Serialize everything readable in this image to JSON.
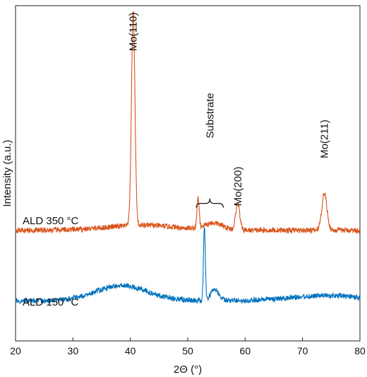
{
  "chart_data": {
    "type": "line",
    "xlabel": "2Θ (°)",
    "ylabel": "Intensity (a.u.)",
    "xlim": [
      20,
      80
    ],
    "ylim": [
      0,
      1
    ],
    "xticks": [
      20,
      30,
      40,
      50,
      60,
      70,
      80
    ],
    "grid": false,
    "series": [
      {
        "name": "ALD 350 °C",
        "color": "#d95319",
        "baseline": 0.33,
        "noise": 0.008,
        "peaks": [
          {
            "center": 40.5,
            "height": 0.64,
            "width": 0.3
          },
          {
            "center": 51.8,
            "height": 0.09,
            "width": 0.18
          },
          {
            "center": 54.5,
            "height": 0.02,
            "width": 1.6
          },
          {
            "center": 58.7,
            "height": 0.08,
            "width": 0.35
          },
          {
            "center": 73.8,
            "height": 0.11,
            "width": 0.45
          }
        ],
        "humps": [
          {
            "center": 42,
            "height": 0.015,
            "width": 6
          }
        ]
      },
      {
        "name": "ALD 150 °C",
        "color": "#0072bd",
        "baseline": 0.12,
        "noise": 0.008,
        "peaks": [
          {
            "center": 52.9,
            "height": 0.22,
            "width": 0.16
          },
          {
            "center": 54.7,
            "height": 0.035,
            "width": 0.7
          }
        ],
        "humps": [
          {
            "center": 38.5,
            "height": 0.045,
            "width": 4.5
          },
          {
            "center": 74,
            "height": 0.015,
            "width": 6
          }
        ]
      }
    ],
    "annotations": [
      {
        "text": "Mo(110)",
        "x": 40.5,
        "y": 0.98
      },
      {
        "text": "Substrate",
        "x": 53.9,
        "y": 0.74
      },
      {
        "text": "Mo(200)",
        "x": 58.7,
        "y": 0.52
      },
      {
        "text": "Mo(211)",
        "x": 73.8,
        "y": 0.66
      }
    ],
    "bracket": {
      "x1": 51.5,
      "x2": 56.2,
      "y": 0.41
    }
  }
}
